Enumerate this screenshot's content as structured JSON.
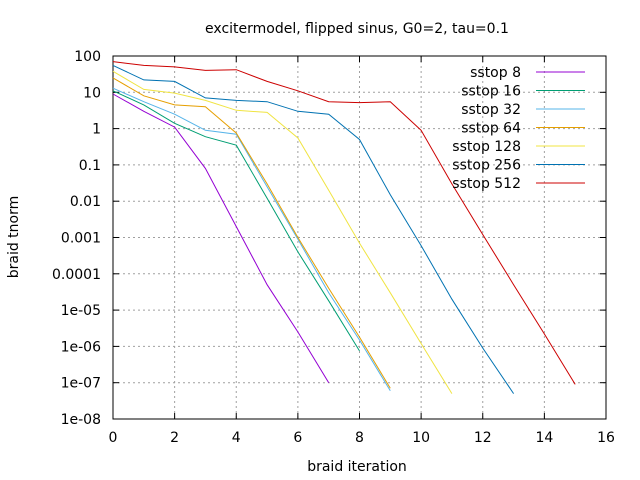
{
  "chart_data": {
    "type": "line",
    "title": "excitermodel, flipped sinus, G0=2, tau=0.1",
    "xlabel": "braid iteration",
    "ylabel": "braid tnorm",
    "xlim": [
      0,
      16
    ],
    "ylim": [
      1e-08,
      100
    ],
    "yscale": "log",
    "grid": true,
    "legend_position": "top-right",
    "x_ticks": [
      0,
      2,
      4,
      6,
      8,
      10,
      12,
      14,
      16
    ],
    "x_tick_labels": [
      "0",
      "2",
      "4",
      "6",
      "8",
      "10",
      "12",
      "14",
      "16"
    ],
    "y_ticks": [
      1e-08,
      1e-07,
      1e-06,
      1e-05,
      0.0001,
      0.001,
      0.01,
      0.1,
      1,
      10,
      100
    ],
    "y_tick_labels": [
      "1e-08",
      "1e-07",
      "1e-06",
      "1e-05",
      "0.0001",
      "0.001",
      "0.01",
      "0.1",
      "1",
      "10",
      "100"
    ],
    "series": [
      {
        "name": "sstop 8",
        "color": "#9400d3",
        "x": [
          0,
          1,
          2,
          3,
          4,
          5,
          6,
          7
        ],
        "y": [
          9,
          3,
          1.1,
          0.08,
          0.002,
          5e-05,
          2.5e-06,
          1e-07
        ]
      },
      {
        "name": "sstop 16",
        "color": "#009e73",
        "x": [
          0,
          1,
          2,
          3,
          4,
          5,
          6,
          7,
          8
        ],
        "y": [
          11,
          4.5,
          1.4,
          0.6,
          0.35,
          0.012,
          0.0004,
          1.8e-05,
          7.5e-07
        ]
      },
      {
        "name": "sstop 32",
        "color": "#56b4e9",
        "x": [
          0,
          1,
          2,
          3,
          4,
          5,
          6,
          7,
          8,
          9
        ],
        "y": [
          13,
          5.5,
          2.5,
          0.9,
          0.7,
          0.025,
          0.0009,
          3e-05,
          1.5e-06,
          6e-08
        ]
      },
      {
        "name": "sstop 64",
        "color": "#e69f00",
        "x": [
          0,
          1,
          2,
          3,
          4,
          5,
          6,
          7,
          8,
          9
        ],
        "y": [
          25,
          8,
          4.5,
          4,
          0.75,
          0.03,
          0.001,
          4e-05,
          1.8e-06,
          7e-08
        ]
      },
      {
        "name": "sstop 128",
        "color": "#f0e442",
        "x": [
          0,
          1,
          2,
          3,
          4,
          5,
          6,
          7,
          8,
          9,
          10,
          11
        ],
        "y": [
          38,
          12,
          9.5,
          6,
          3.2,
          2.8,
          0.55,
          0.02,
          0.0007,
          3e-05,
          1.2e-06,
          5e-08
        ]
      },
      {
        "name": "sstop 256",
        "color": "#0072b2",
        "x": [
          0,
          1,
          2,
          3,
          4,
          5,
          6,
          7,
          8,
          9,
          10,
          11,
          12,
          13
        ],
        "y": [
          55,
          22,
          20,
          7,
          6,
          5.5,
          3,
          2.5,
          0.5,
          0.015,
          0.0006,
          2e-05,
          9e-07,
          5e-08
        ]
      },
      {
        "name": "sstop 512",
        "color": "#cc0000",
        "x": [
          0,
          1,
          2,
          3,
          4,
          5,
          6,
          7,
          8,
          9,
          10,
          11,
          12,
          13,
          14,
          15
        ],
        "y": [
          70,
          55,
          50,
          40,
          42,
          20,
          11,
          5.5,
          5.2,
          5.5,
          0.9,
          0.03,
          0.0012,
          5e-05,
          2.2e-06,
          9e-08
        ]
      }
    ]
  }
}
